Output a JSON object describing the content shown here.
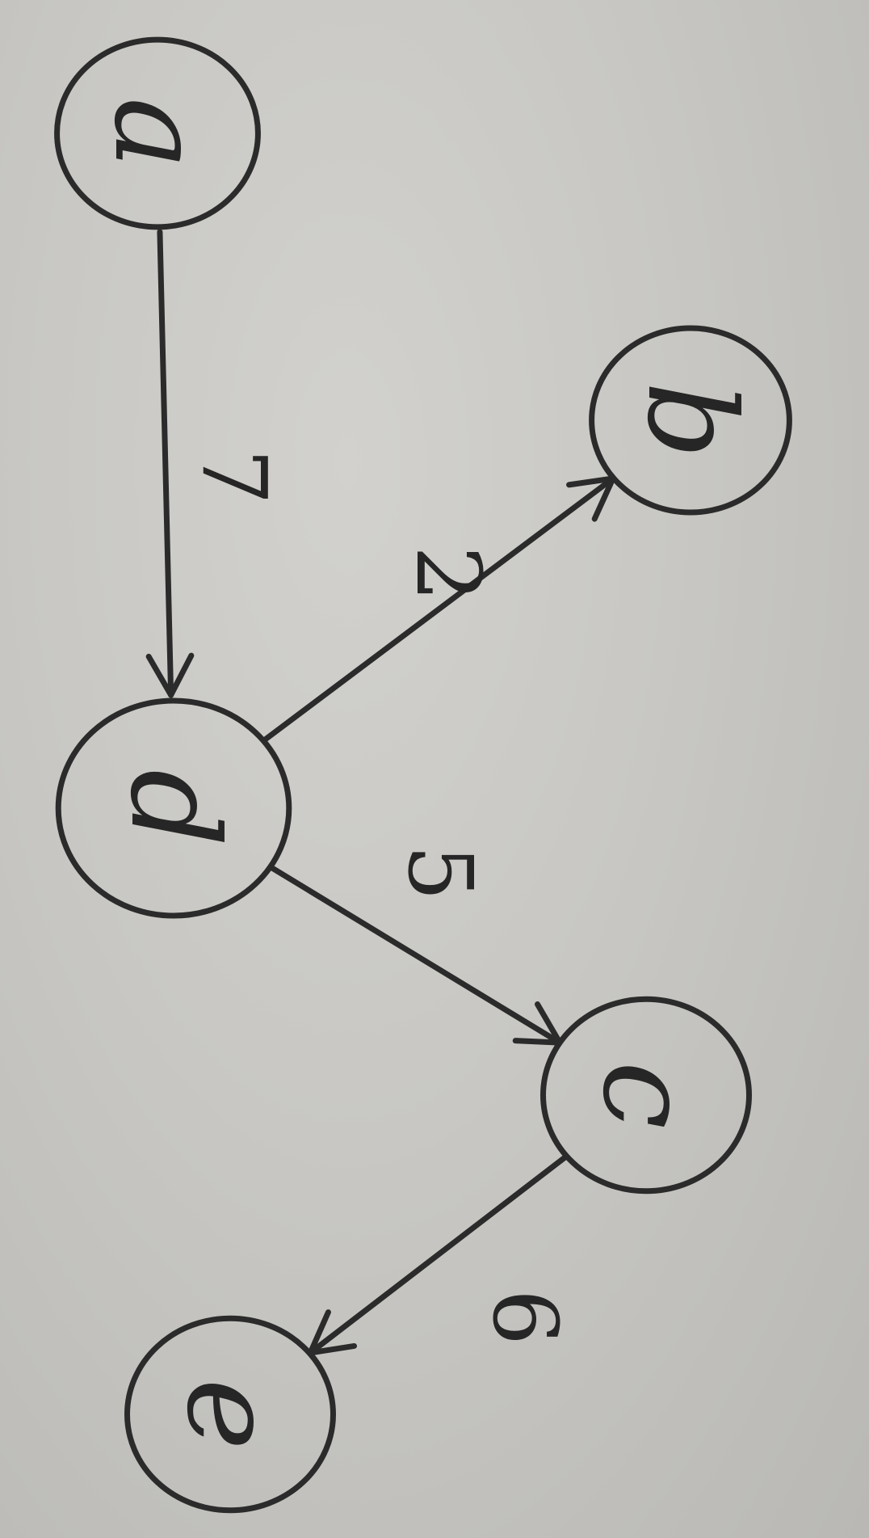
{
  "nodes": [
    {
      "id": "a",
      "label": "a"
    },
    {
      "id": "d",
      "label": "d"
    },
    {
      "id": "b",
      "label": "b"
    },
    {
      "id": "c",
      "label": "c"
    },
    {
      "id": "e",
      "label": "e"
    }
  ],
  "edges": [
    {
      "id": "a-d",
      "from": "a",
      "to": "d",
      "weight": "7"
    },
    {
      "id": "d-b",
      "from": "d",
      "to": "b",
      "weight": "2"
    },
    {
      "id": "d-c",
      "from": "d",
      "to": "c",
      "weight": "5"
    },
    {
      "id": "c-e",
      "from": "c",
      "to": "e",
      "weight": "6"
    }
  ],
  "colors": {
    "ink": "#2b2b2b",
    "paper": "#c6c5c1"
  }
}
